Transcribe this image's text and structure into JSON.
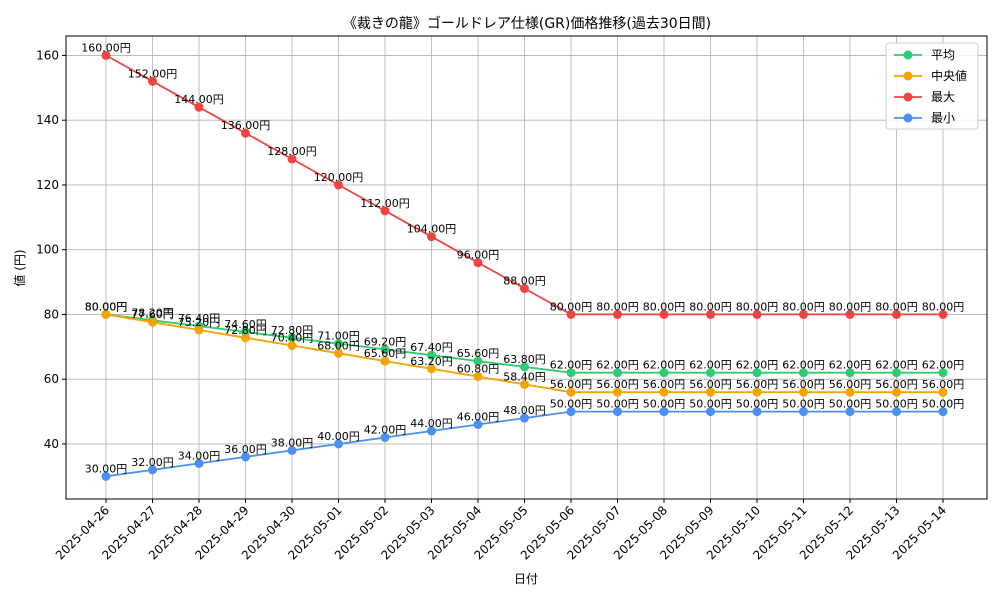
{
  "chart_data": {
    "type": "line",
    "title": "《裁きの龍》ゴールドレア仕様(GR)価格推移(過去30日間)",
    "xlabel": "日付",
    "ylabel": "値 (円)",
    "ylim": [
      23,
      166
    ],
    "yticks": [
      40,
      60,
      80,
      100,
      120,
      140,
      160
    ],
    "grid": true,
    "legend_position": "top-right",
    "value_suffix": "円",
    "categories": [
      "2025-04-26",
      "2025-04-27",
      "2025-04-28",
      "2025-04-29",
      "2025-04-30",
      "2025-05-01",
      "2025-05-02",
      "2025-05-03",
      "2025-05-04",
      "2025-05-05",
      "2025-05-06",
      "2025-05-07",
      "2025-05-08",
      "2025-05-09",
      "2025-05-10",
      "2025-05-11",
      "2025-05-12",
      "2025-05-13",
      "2025-05-14"
    ],
    "series": [
      {
        "name": "平均",
        "color": "#2ecc71",
        "values": [
          80.0,
          78.2,
          76.4,
          74.6,
          72.8,
          71.0,
          69.2,
          67.4,
          65.6,
          63.8,
          62.0,
          62.0,
          62.0,
          62.0,
          62.0,
          62.0,
          62.0,
          62.0,
          62.0
        ]
      },
      {
        "name": "中央値",
        "color": "#f5a300",
        "values": [
          80.0,
          77.6,
          75.2,
          72.8,
          70.4,
          68.0,
          65.6,
          63.2,
          60.8,
          58.4,
          56.0,
          56.0,
          56.0,
          56.0,
          56.0,
          56.0,
          56.0,
          56.0,
          56.0
        ]
      },
      {
        "name": "最大",
        "color": "#ef4444",
        "values": [
          160.0,
          152.0,
          144.0,
          136.0,
          128.0,
          120.0,
          112.0,
          104.0,
          96.0,
          88.0,
          80.0,
          80.0,
          80.0,
          80.0,
          80.0,
          80.0,
          80.0,
          80.0,
          80.0
        ]
      },
      {
        "name": "最小",
        "color": "#4a90f0",
        "values": [
          30.0,
          32.0,
          34.0,
          36.0,
          38.0,
          40.0,
          42.0,
          44.0,
          46.0,
          48.0,
          50.0,
          50.0,
          50.0,
          50.0,
          50.0,
          50.0,
          50.0,
          50.0,
          50.0
        ]
      }
    ]
  }
}
